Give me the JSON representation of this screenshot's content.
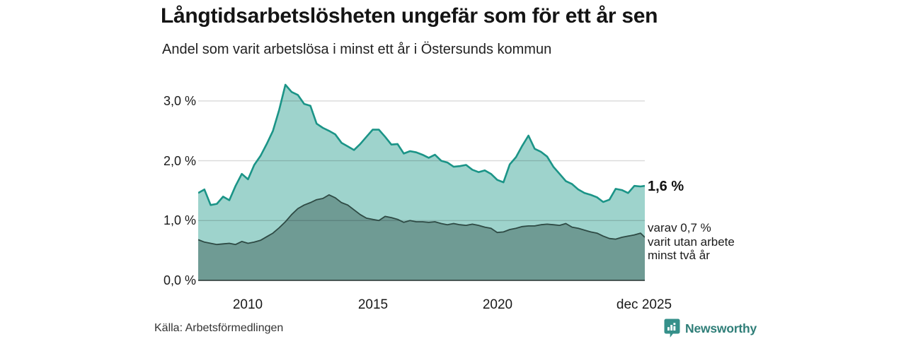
{
  "footer": {
    "source": "Källa: Arbetsförmedlingen",
    "brand": "Newsworthy"
  },
  "annotations": {
    "latest_value": "1,6 %",
    "secondary_note": "varav 0,7 %\nvarit utan arbete\nminst två år"
  },
  "colors": {
    "series1_fill": "#9ed3cc",
    "series1_stroke": "#1b9487",
    "series2_fill": "#6f9b94",
    "series2_stroke": "#2e4a44",
    "gridline": "rgba(0,0,0,0.15)",
    "baseline": "#25312f",
    "brand_teal": "#35908a"
  },
  "chart_data": {
    "type": "area",
    "title": "Långtidsarbetslösheten ungefär som för ett år sen",
    "subtitle": "Andel som varit arbetslösa i minst ett år i Östersunds kommun",
    "xlabel": "",
    "ylabel": "",
    "grid": true,
    "legend_position": "annotations-right",
    "ylim": [
      0,
      3.45
    ],
    "xlim": [
      2008.0,
      2025.92
    ],
    "yticks": [
      {
        "value": 0,
        "label": "0,0 %"
      },
      {
        "value": 1,
        "label": "1,0 %"
      },
      {
        "value": 2,
        "label": "2,0 %"
      },
      {
        "value": 3,
        "label": "3,0 %"
      }
    ],
    "xticks": [
      {
        "value": 2010,
        "label": "2010"
      },
      {
        "value": 2015,
        "label": "2015"
      },
      {
        "value": 2020,
        "label": "2020"
      },
      {
        "value": 2025.92,
        "label": "dec 2025"
      }
    ],
    "x": [
      2008.0,
      2008.25,
      2008.5,
      2008.75,
      2009.0,
      2009.25,
      2009.5,
      2009.75,
      2010.0,
      2010.25,
      2010.5,
      2010.75,
      2011.0,
      2011.25,
      2011.5,
      2011.75,
      2012.0,
      2012.25,
      2012.5,
      2012.75,
      2013.0,
      2013.25,
      2013.5,
      2013.75,
      2014.0,
      2014.25,
      2014.5,
      2014.75,
      2015.0,
      2015.25,
      2015.5,
      2015.75,
      2016.0,
      2016.25,
      2016.5,
      2016.75,
      2017.0,
      2017.25,
      2017.5,
      2017.75,
      2018.0,
      2018.25,
      2018.5,
      2018.75,
      2019.0,
      2019.25,
      2019.5,
      2019.75,
      2020.0,
      2020.25,
      2020.5,
      2020.75,
      2021.0,
      2021.25,
      2021.5,
      2021.75,
      2022.0,
      2022.25,
      2022.5,
      2022.75,
      2023.0,
      2023.25,
      2023.5,
      2023.75,
      2024.0,
      2024.25,
      2024.5,
      2024.75,
      2025.0,
      2025.25,
      2025.5,
      2025.75,
      2025.92
    ],
    "series": [
      {
        "name": "Arbetslösa minst ett år",
        "end_value_label": "1,6 %",
        "fill": "#9ed3cc",
        "stroke": "#1b9487",
        "stroke_width": 2.6,
        "values": [
          1.46,
          1.52,
          1.26,
          1.28,
          1.4,
          1.34,
          1.58,
          1.78,
          1.69,
          1.93,
          2.08,
          2.28,
          2.5,
          2.85,
          3.27,
          3.15,
          3.1,
          2.95,
          2.92,
          2.62,
          2.55,
          2.5,
          2.44,
          2.3,
          2.24,
          2.18,
          2.28,
          2.4,
          2.52,
          2.52,
          2.4,
          2.27,
          2.28,
          2.12,
          2.16,
          2.14,
          2.1,
          2.05,
          2.1,
          2.0,
          1.97,
          1.9,
          1.91,
          1.93,
          1.85,
          1.81,
          1.84,
          1.78,
          1.68,
          1.64,
          1.94,
          2.06,
          2.25,
          2.42,
          2.2,
          2.15,
          2.07,
          1.9,
          1.78,
          1.66,
          1.61,
          1.52,
          1.46,
          1.43,
          1.39,
          1.31,
          1.35,
          1.53,
          1.51,
          1.46,
          1.58,
          1.57,
          1.58
        ]
      },
      {
        "name": "Utan arbete minst två år",
        "end_value_label": "0,7 %",
        "fill": "#6f9b94",
        "stroke": "#2e4a44",
        "stroke_width": 1.8,
        "values": [
          0.68,
          0.64,
          0.62,
          0.6,
          0.61,
          0.62,
          0.6,
          0.65,
          0.62,
          0.64,
          0.67,
          0.73,
          0.79,
          0.88,
          0.98,
          1.1,
          1.2,
          1.26,
          1.3,
          1.35,
          1.37,
          1.43,
          1.38,
          1.3,
          1.26,
          1.18,
          1.1,
          1.04,
          1.02,
          1.0,
          1.07,
          1.05,
          1.02,
          0.97,
          1.0,
          0.98,
          0.98,
          0.97,
          0.98,
          0.95,
          0.93,
          0.95,
          0.93,
          0.92,
          0.94,
          0.92,
          0.89,
          0.87,
          0.8,
          0.81,
          0.85,
          0.87,
          0.9,
          0.91,
          0.91,
          0.93,
          0.94,
          0.93,
          0.92,
          0.95,
          0.89,
          0.87,
          0.84,
          0.81,
          0.79,
          0.74,
          0.7,
          0.69,
          0.72,
          0.74,
          0.76,
          0.79,
          0.72
        ]
      }
    ]
  }
}
